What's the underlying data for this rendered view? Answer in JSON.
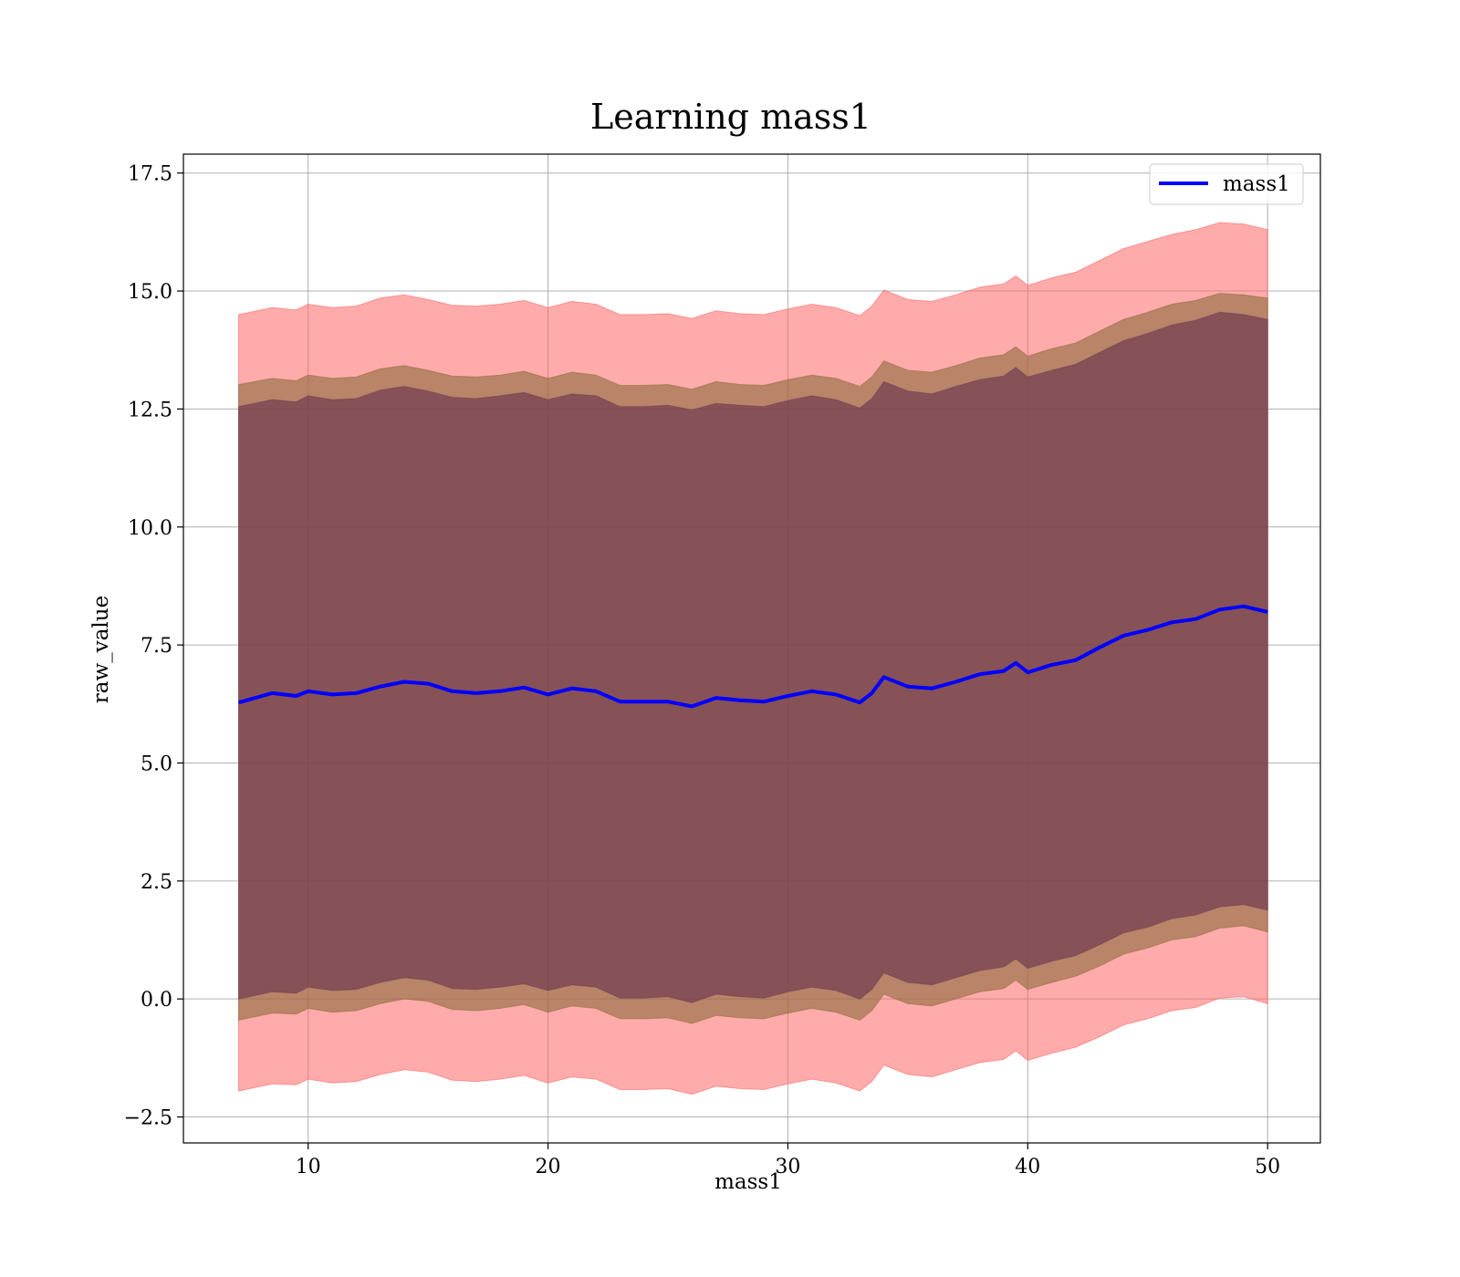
{
  "chart_data": {
    "type": "area",
    "title": "Learning mass1",
    "xlabel": "mass1",
    "ylabel": "raw_value",
    "xlim": [
      4.8,
      52.2
    ],
    "ylim": [
      -3.05,
      17.9
    ],
    "x_ticks": [
      10,
      20,
      30,
      40,
      50
    ],
    "y_ticks": [
      -2.5,
      0.0,
      2.5,
      5.0,
      7.5,
      10.0,
      12.5,
      15.0,
      17.5
    ],
    "x_tick_labels": [
      "10",
      "20",
      "30",
      "40",
      "50"
    ],
    "y_tick_labels": [
      "−2.5",
      "0.0",
      "2.5",
      "5.0",
      "7.5",
      "10.0",
      "12.5",
      "15.0",
      "17.5"
    ],
    "grid": true,
    "legend": {
      "placement": "top-right",
      "entries": [
        "mass1"
      ]
    },
    "colors": {
      "mean_line": "#0000ff",
      "band_outer": "#ff6666",
      "band_middle": "#8b6a3a",
      "band_inner": "#5c2a4a"
    },
    "series": [
      {
        "name": "mass1",
        "role": "mean",
        "x": [
          7.1,
          8.5,
          9.5,
          10.0,
          11.0,
          12.0,
          13.0,
          14.0,
          15.0,
          16.0,
          17.0,
          18.0,
          19.0,
          20.0,
          21.0,
          22.0,
          23.0,
          24.0,
          25.0,
          26.0,
          27.0,
          28.0,
          29.0,
          30.0,
          31.0,
          32.0,
          33.0,
          33.5,
          34.0,
          35.0,
          36.0,
          37.0,
          38.0,
          39.0,
          39.5,
          40.0,
          41.0,
          42.0,
          43.0,
          44.0,
          45.0,
          46.0,
          47.0,
          48.0,
          49.0,
          50.0
        ],
        "y": [
          6.28,
          6.48,
          6.42,
          6.52,
          6.45,
          6.48,
          6.62,
          6.72,
          6.68,
          6.52,
          6.48,
          6.52,
          6.6,
          6.45,
          6.58,
          6.52,
          6.3,
          6.3,
          6.3,
          6.2,
          6.38,
          6.33,
          6.3,
          6.42,
          6.52,
          6.45,
          6.28,
          6.48,
          6.82,
          6.62,
          6.58,
          6.72,
          6.88,
          6.95,
          7.12,
          6.92,
          7.08,
          7.18,
          7.45,
          7.7,
          7.82,
          7.98,
          8.05,
          8.25,
          8.32,
          8.2
        ]
      },
      {
        "role": "band_outer",
        "x": [
          7.1,
          8.5,
          9.5,
          10.0,
          11.0,
          12.0,
          13.0,
          14.0,
          15.0,
          16.0,
          17.0,
          18.0,
          19.0,
          20.0,
          21.0,
          22.0,
          23.0,
          24.0,
          25.0,
          26.0,
          27.0,
          28.0,
          29.0,
          30.0,
          31.0,
          32.0,
          33.0,
          33.5,
          34.0,
          35.0,
          36.0,
          37.0,
          38.0,
          39.0,
          39.5,
          40.0,
          41.0,
          42.0,
          43.0,
          44.0,
          45.0,
          46.0,
          47.0,
          48.0,
          49.0,
          50.0
        ],
        "upper": [
          14.5,
          14.65,
          14.6,
          14.72,
          14.65,
          14.68,
          14.85,
          14.92,
          14.82,
          14.7,
          14.68,
          14.72,
          14.8,
          14.65,
          14.78,
          14.72,
          14.5,
          14.5,
          14.52,
          14.42,
          14.58,
          14.52,
          14.5,
          14.62,
          14.72,
          14.65,
          14.48,
          14.68,
          15.02,
          14.82,
          14.78,
          14.92,
          15.08,
          15.15,
          15.32,
          15.12,
          15.28,
          15.4,
          15.65,
          15.9,
          16.05,
          16.2,
          16.3,
          16.45,
          16.42,
          16.3
        ],
        "lower": [
          -1.95,
          -1.8,
          -1.82,
          -1.7,
          -1.78,
          -1.75,
          -1.6,
          -1.5,
          -1.55,
          -1.72,
          -1.75,
          -1.7,
          -1.62,
          -1.78,
          -1.65,
          -1.7,
          -1.92,
          -1.92,
          -1.9,
          -2.02,
          -1.85,
          -1.9,
          -1.92,
          -1.8,
          -1.7,
          -1.78,
          -1.95,
          -1.75,
          -1.4,
          -1.6,
          -1.65,
          -1.5,
          -1.35,
          -1.28,
          -1.1,
          -1.3,
          -1.15,
          -1.02,
          -0.8,
          -0.55,
          -0.42,
          -0.25,
          -0.18,
          0.02,
          0.05,
          -0.1
        ]
      },
      {
        "role": "band_middle",
        "x": [
          7.1,
          8.5,
          9.5,
          10.0,
          11.0,
          12.0,
          13.0,
          14.0,
          15.0,
          16.0,
          17.0,
          18.0,
          19.0,
          20.0,
          21.0,
          22.0,
          23.0,
          24.0,
          25.0,
          26.0,
          27.0,
          28.0,
          29.0,
          30.0,
          31.0,
          32.0,
          33.0,
          33.5,
          34.0,
          35.0,
          36.0,
          37.0,
          38.0,
          39.0,
          39.5,
          40.0,
          41.0,
          42.0,
          43.0,
          44.0,
          45.0,
          46.0,
          47.0,
          48.0,
          49.0,
          50.0
        ],
        "upper": [
          13.02,
          13.15,
          13.1,
          13.22,
          13.15,
          13.18,
          13.35,
          13.42,
          13.32,
          13.2,
          13.18,
          13.22,
          13.3,
          13.15,
          13.28,
          13.22,
          13.0,
          13.0,
          13.02,
          12.92,
          13.08,
          13.02,
          13.0,
          13.12,
          13.22,
          13.15,
          12.98,
          13.18,
          13.52,
          13.32,
          13.28,
          13.42,
          13.58,
          13.65,
          13.82,
          13.62,
          13.78,
          13.9,
          14.15,
          14.4,
          14.55,
          14.72,
          14.8,
          14.95,
          14.92,
          14.85
        ],
        "lower": [
          -0.45,
          -0.3,
          -0.32,
          -0.2,
          -0.28,
          -0.25,
          -0.1,
          0.0,
          -0.05,
          -0.22,
          -0.25,
          -0.2,
          -0.12,
          -0.28,
          -0.15,
          -0.2,
          -0.42,
          -0.42,
          -0.4,
          -0.52,
          -0.35,
          -0.4,
          -0.42,
          -0.3,
          -0.2,
          -0.28,
          -0.45,
          -0.25,
          0.1,
          -0.1,
          -0.15,
          0.0,
          0.15,
          0.22,
          0.4,
          0.2,
          0.35,
          0.48,
          0.7,
          0.95,
          1.08,
          1.25,
          1.32,
          1.5,
          1.55,
          1.42
        ]
      },
      {
        "role": "band_inner",
        "x": [
          7.1,
          8.5,
          9.5,
          10.0,
          11.0,
          12.0,
          13.0,
          14.0,
          15.0,
          16.0,
          17.0,
          18.0,
          19.0,
          20.0,
          21.0,
          22.0,
          23.0,
          24.0,
          25.0,
          26.0,
          27.0,
          28.0,
          29.0,
          30.0,
          31.0,
          32.0,
          33.0,
          33.5,
          34.0,
          35.0,
          36.0,
          37.0,
          38.0,
          39.0,
          39.5,
          40.0,
          41.0,
          42.0,
          43.0,
          44.0,
          45.0,
          46.0,
          47.0,
          48.0,
          49.0,
          50.0
        ],
        "upper": [
          12.55,
          12.7,
          12.65,
          12.78,
          12.7,
          12.72,
          12.9,
          12.98,
          12.88,
          12.75,
          12.72,
          12.78,
          12.85,
          12.7,
          12.82,
          12.78,
          12.55,
          12.55,
          12.58,
          12.48,
          12.62,
          12.58,
          12.55,
          12.68,
          12.78,
          12.7,
          12.52,
          12.72,
          13.08,
          12.88,
          12.82,
          12.98,
          13.12,
          13.2,
          13.38,
          13.18,
          13.32,
          13.45,
          13.7,
          13.95,
          14.1,
          14.28,
          14.38,
          14.55,
          14.5,
          14.4
        ],
        "lower": [
          0.0,
          0.15,
          0.12,
          0.25,
          0.18,
          0.2,
          0.35,
          0.45,
          0.4,
          0.22,
          0.2,
          0.25,
          0.32,
          0.18,
          0.3,
          0.25,
          0.02,
          0.02,
          0.05,
          -0.08,
          0.1,
          0.05,
          0.02,
          0.15,
          0.25,
          0.18,
          0.0,
          0.2,
          0.55,
          0.35,
          0.3,
          0.45,
          0.6,
          0.68,
          0.85,
          0.65,
          0.8,
          0.92,
          1.15,
          1.4,
          1.52,
          1.7,
          1.78,
          1.95,
          2.0,
          1.88
        ]
      }
    ]
  }
}
